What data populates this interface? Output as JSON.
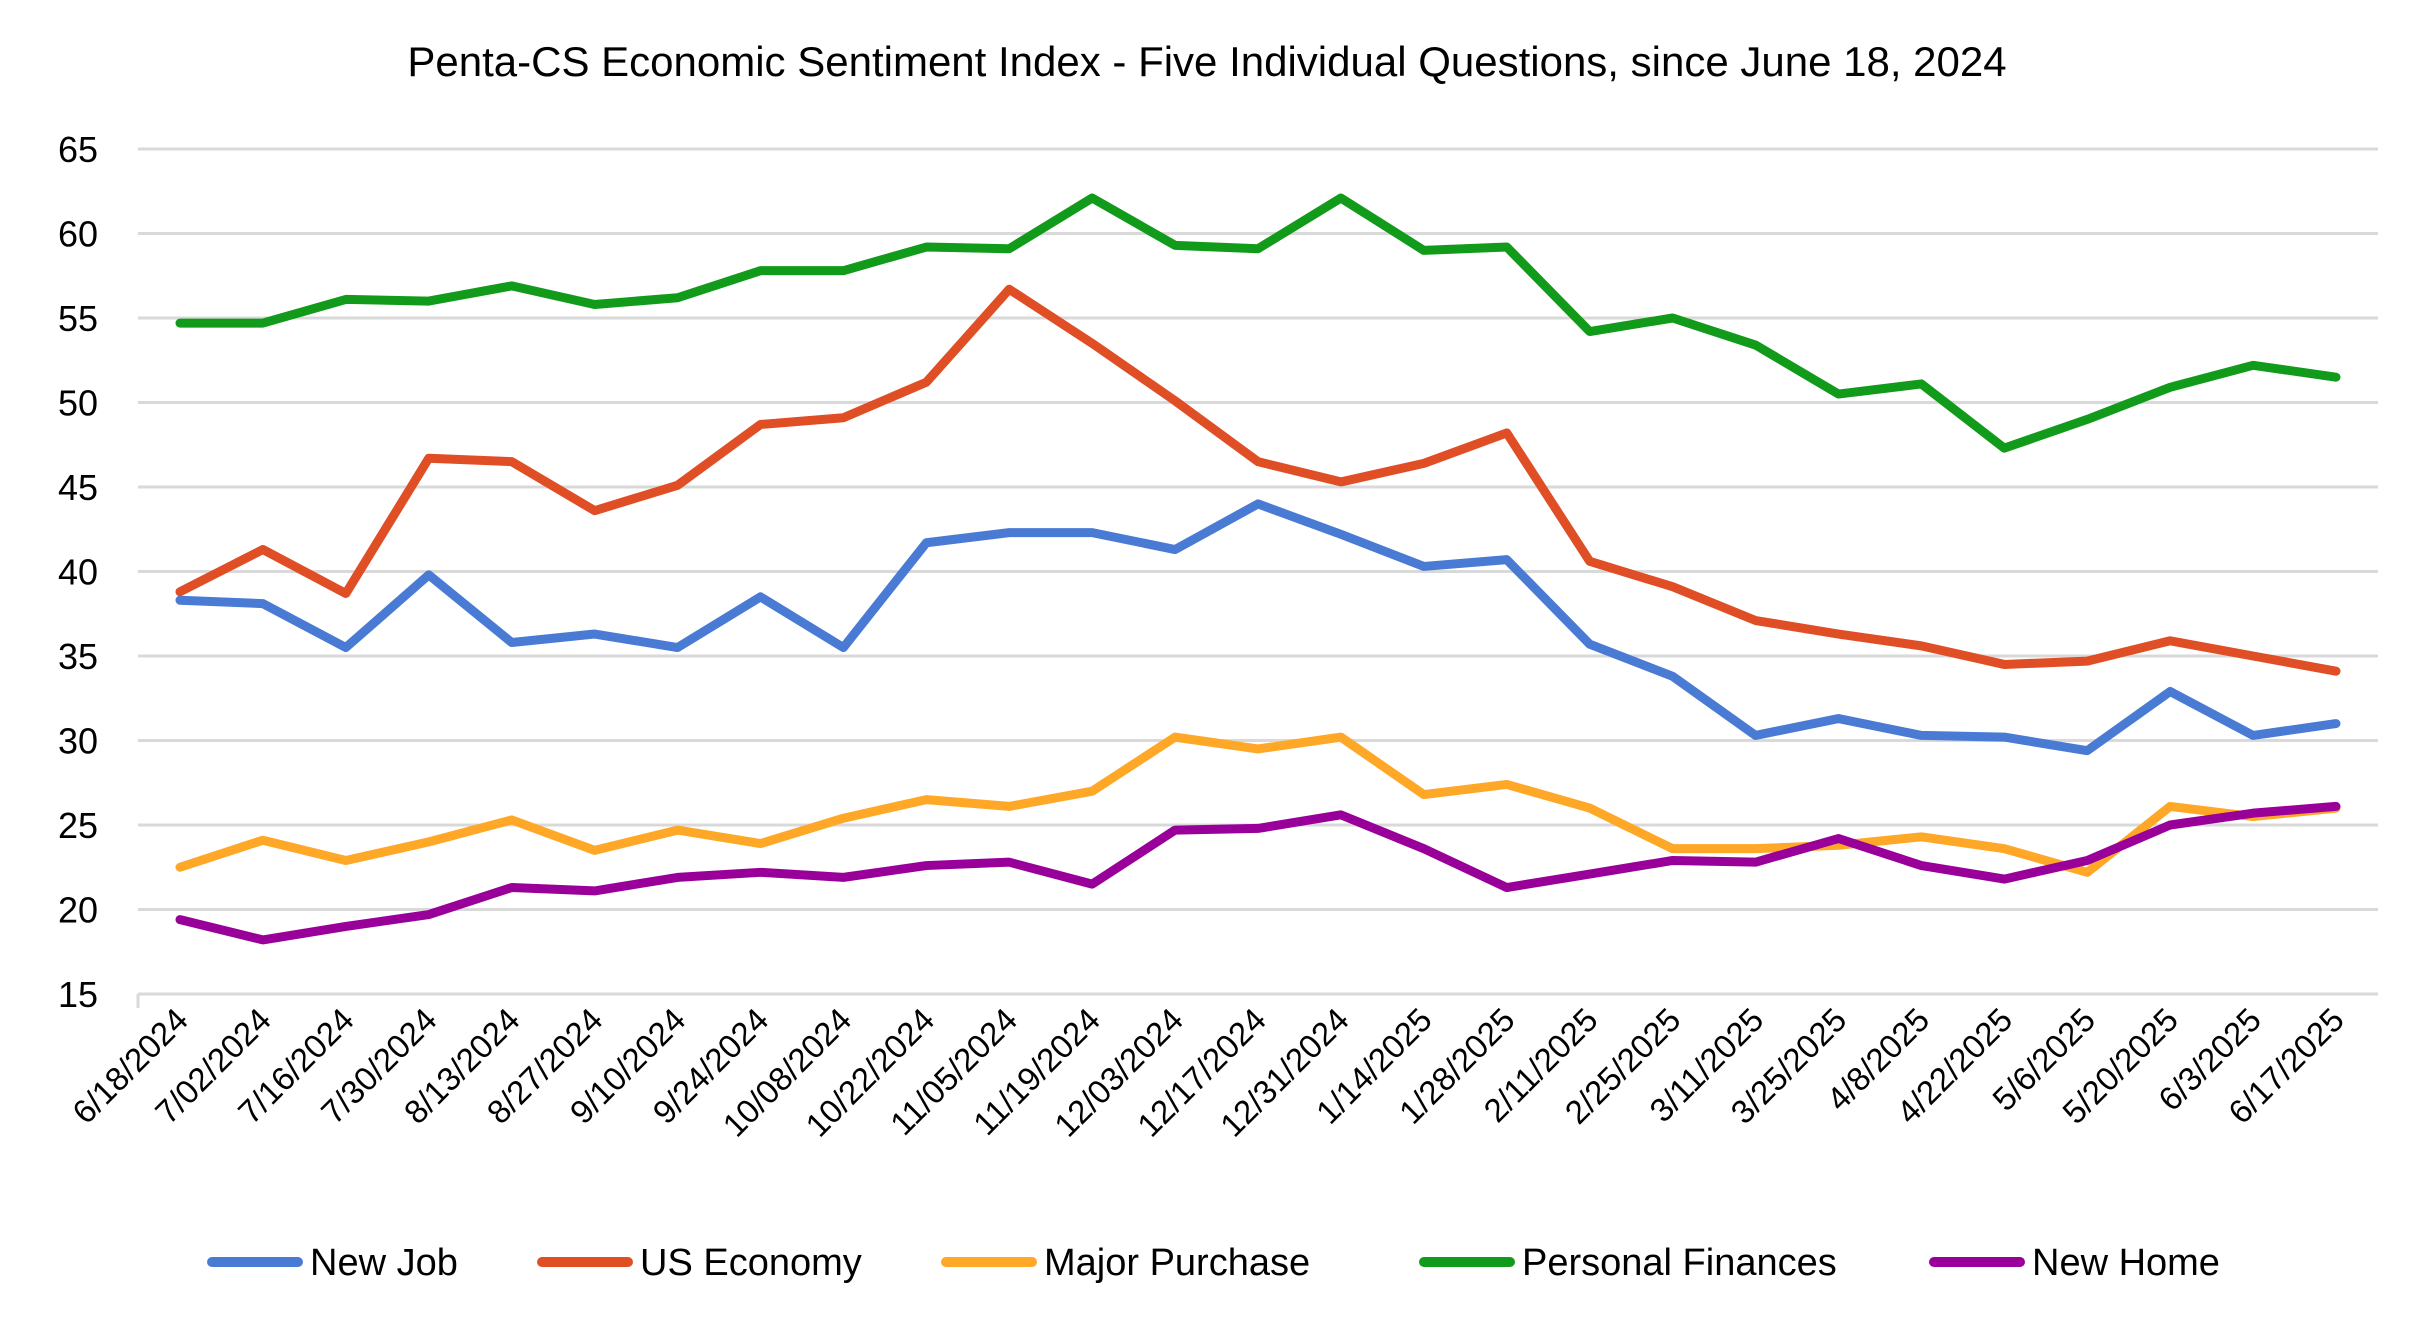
{
  "chart_data": {
    "type": "line",
    "title": "Penta-CS Economic Sentiment Index - Five Individual Questions, since June 18, 2024",
    "xlabel": "",
    "ylabel": "",
    "ylim": [
      15,
      65
    ],
    "yticks": [
      15,
      20,
      25,
      30,
      35,
      40,
      45,
      50,
      55,
      60,
      65
    ],
    "grid": true,
    "legend_position": "bottom",
    "x": [
      "6/18/2024",
      "7/02/2024",
      "7/16/2024",
      "7/30/2024",
      "8/13/2024",
      "8/27/2024",
      "9/10/2024",
      "9/24/2024",
      "10/08/2024",
      "10/22/2024",
      "11/05/2024",
      "11/19/2024",
      "12/03/2024",
      "12/17/2024",
      "12/31/2024",
      "1/14/2025",
      "1/28/2025",
      "2/11/2025",
      "2/25/2025",
      "3/11/2025",
      "3/25/2025",
      "4/8/2025",
      "4/22/2025",
      "5/6/2025",
      "5/20/2025",
      "6/3/2025",
      "6/17/2025"
    ],
    "series": [
      {
        "name": "New Job",
        "color": "#4A7BD4",
        "values": [
          38.3,
          38.1,
          35.5,
          39.8,
          35.8,
          36.3,
          35.5,
          38.5,
          35.5,
          41.7,
          42.3,
          42.3,
          41.3,
          44.0,
          42.2,
          40.3,
          40.7,
          35.7,
          33.8,
          30.3,
          31.3,
          30.3,
          30.2,
          29.4,
          32.9,
          30.3,
          31.0
        ]
      },
      {
        "name": "US Economy",
        "color": "#E04E25",
        "values": [
          38.8,
          41.3,
          38.7,
          46.7,
          46.5,
          43.6,
          45.1,
          48.7,
          49.1,
          51.2,
          56.7,
          53.5,
          50.1,
          46.5,
          45.3,
          46.4,
          48.2,
          40.6,
          39.1,
          37.1,
          36.3,
          35.6,
          34.5,
          34.7,
          35.9,
          35.0,
          34.1
        ]
      },
      {
        "name": "Major Purchase",
        "color": "#FFA726",
        "values": [
          22.5,
          24.1,
          22.9,
          24.0,
          25.3,
          23.5,
          24.7,
          23.9,
          25.4,
          26.5,
          26.1,
          27.0,
          30.2,
          29.5,
          30.2,
          26.8,
          27.4,
          26.0,
          23.6,
          23.6,
          23.8,
          24.3,
          23.6,
          22.2,
          26.1,
          25.5,
          26.0
        ]
      },
      {
        "name": "Personal Finances",
        "color": "#129B1A",
        "values": [
          54.7,
          54.7,
          56.1,
          56.0,
          56.9,
          55.8,
          56.2,
          57.8,
          57.8,
          59.2,
          59.1,
          62.1,
          59.3,
          59.1,
          62.1,
          59.0,
          59.2,
          54.2,
          55.0,
          53.4,
          50.5,
          51.1,
          47.3,
          49.0,
          50.9,
          52.2,
          51.5
        ]
      },
      {
        "name": "New Home",
        "color": "#990099",
        "values": [
          19.4,
          18.2,
          19.0,
          19.7,
          21.3,
          21.1,
          21.9,
          22.2,
          21.9,
          22.6,
          22.8,
          21.5,
          24.7,
          24.8,
          25.6,
          23.6,
          21.3,
          22.1,
          22.9,
          22.8,
          24.2,
          22.6,
          21.8,
          22.9,
          25.0,
          25.7,
          26.1
        ]
      }
    ]
  }
}
